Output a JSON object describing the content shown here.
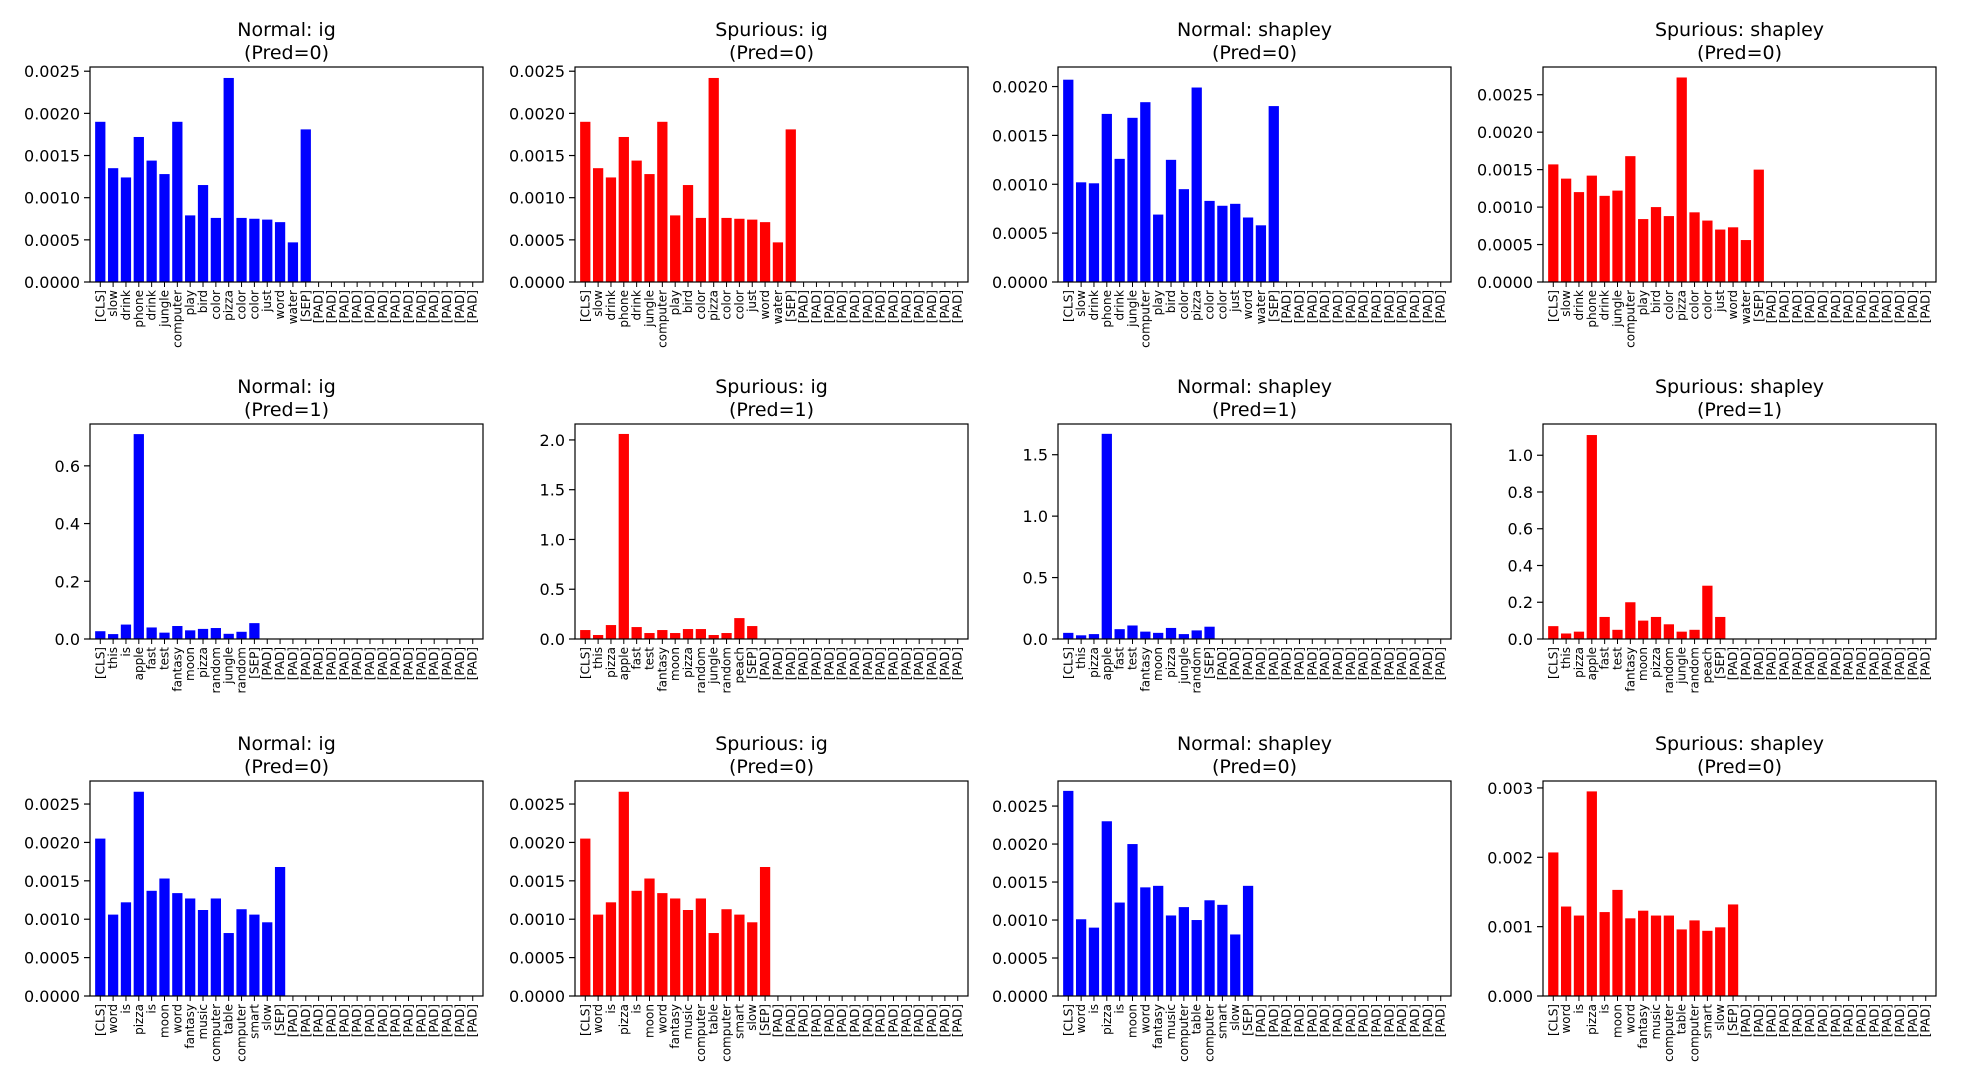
{
  "chart_data": [
    {
      "type": "bar",
      "title": "Normal: ig",
      "subtitle": "(Pred=0)",
      "color": "#0000ff",
      "categories": [
        "[CLS]",
        "slow",
        "drink",
        "phone",
        "drink",
        "jungle",
        "computer",
        "play",
        "bird",
        "color",
        "pizza",
        "color",
        "color",
        "just",
        "word",
        "water",
        "[SEP]",
        "[PAD]",
        "[PAD]",
        "[PAD]",
        "[PAD]",
        "[PAD]",
        "[PAD]",
        "[PAD]",
        "[PAD]",
        "[PAD]",
        "[PAD]",
        "[PAD]",
        "[PAD]",
        "[PAD]"
      ],
      "values": [
        0.0019,
        0.00135,
        0.00124,
        0.00172,
        0.00144,
        0.00128,
        0.0019,
        0.00079,
        0.00115,
        0.00076,
        0.00242,
        0.00076,
        0.00075,
        0.00074,
        0.00071,
        0.00047,
        0.00181,
        0,
        0,
        0,
        0,
        0,
        0,
        0,
        0,
        0,
        0,
        0,
        0,
        0
      ],
      "ylim": [
        0,
        0.00255
      ],
      "yticks": [
        0,
        0.0005,
        0.001,
        0.0015,
        0.002,
        0.0025
      ],
      "ytick_labels": [
        "0.0000",
        "0.0005",
        "0.0010",
        "0.0015",
        "0.0020",
        "0.0025"
      ]
    },
    {
      "type": "bar",
      "title": "Spurious: ig",
      "subtitle": "(Pred=0)",
      "color": "#ff0000",
      "categories": [
        "[CLS]",
        "slow",
        "drink",
        "phone",
        "drink",
        "jungle",
        "computer",
        "play",
        "bird",
        "color",
        "pizza",
        "color",
        "color",
        "just",
        "word",
        "water",
        "[SEP]",
        "[PAD]",
        "[PAD]",
        "[PAD]",
        "[PAD]",
        "[PAD]",
        "[PAD]",
        "[PAD]",
        "[PAD]",
        "[PAD]",
        "[PAD]",
        "[PAD]",
        "[PAD]",
        "[PAD]"
      ],
      "values": [
        0.0019,
        0.00135,
        0.00124,
        0.00172,
        0.00144,
        0.00128,
        0.0019,
        0.00079,
        0.00115,
        0.00076,
        0.00242,
        0.00076,
        0.00075,
        0.00074,
        0.00071,
        0.00047,
        0.00181,
        0,
        0,
        0,
        0,
        0,
        0,
        0,
        0,
        0,
        0,
        0,
        0,
        0
      ],
      "ylim": [
        0,
        0.00255
      ],
      "yticks": [
        0,
        0.0005,
        0.001,
        0.0015,
        0.002,
        0.0025
      ],
      "ytick_labels": [
        "0.0000",
        "0.0005",
        "0.0010",
        "0.0015",
        "0.0020",
        "0.0025"
      ]
    },
    {
      "type": "bar",
      "title": "Normal: shapley",
      "subtitle": "(Pred=0)",
      "color": "#0000ff",
      "categories": [
        "[CLS]",
        "slow",
        "drink",
        "phone",
        "drink",
        "jungle",
        "computer",
        "play",
        "bird",
        "color",
        "pizza",
        "color",
        "color",
        "just",
        "word",
        "water",
        "[SEP]",
        "[PAD]",
        "[PAD]",
        "[PAD]",
        "[PAD]",
        "[PAD]",
        "[PAD]",
        "[PAD]",
        "[PAD]",
        "[PAD]",
        "[PAD]",
        "[PAD]",
        "[PAD]",
        "[PAD]"
      ],
      "values": [
        0.00207,
        0.00102,
        0.00101,
        0.00172,
        0.00126,
        0.00168,
        0.00184,
        0.00069,
        0.00125,
        0.00095,
        0.00199,
        0.00083,
        0.00078,
        0.0008,
        0.00066,
        0.00058,
        0.0018,
        0,
        0,
        0,
        0,
        0,
        0,
        0,
        0,
        0,
        0,
        0,
        0,
        0
      ],
      "ylim": [
        0,
        0.0022
      ],
      "yticks": [
        0,
        0.0005,
        0.001,
        0.0015,
        0.002
      ],
      "ytick_labels": [
        "0.0000",
        "0.0005",
        "0.0010",
        "0.0015",
        "0.0020"
      ]
    },
    {
      "type": "bar",
      "title": "Spurious: shapley",
      "subtitle": "(Pred=0)",
      "color": "#ff0000",
      "categories": [
        "[CLS]",
        "slow",
        "drink",
        "phone",
        "drink",
        "jungle",
        "computer",
        "play",
        "bird",
        "color",
        "pizza",
        "color",
        "color",
        "just",
        "word",
        "water",
        "[SEP]",
        "[PAD]",
        "[PAD]",
        "[PAD]",
        "[PAD]",
        "[PAD]",
        "[PAD]",
        "[PAD]",
        "[PAD]",
        "[PAD]",
        "[PAD]",
        "[PAD]",
        "[PAD]",
        "[PAD]"
      ],
      "values": [
        0.00157,
        0.00138,
        0.0012,
        0.00142,
        0.00115,
        0.00122,
        0.00168,
        0.00084,
        0.001,
        0.00088,
        0.00273,
        0.00093,
        0.00082,
        0.0007,
        0.00073,
        0.00056,
        0.0015,
        0,
        0,
        0,
        0,
        0,
        0,
        0,
        0,
        0,
        0,
        0,
        0,
        0
      ],
      "ylim": [
        0,
        0.00287
      ],
      "yticks": [
        0,
        0.0005,
        0.001,
        0.0015,
        0.002,
        0.0025
      ],
      "ytick_labels": [
        "0.0000",
        "0.0005",
        "0.0010",
        "0.0015",
        "0.0020",
        "0.0025"
      ]
    },
    {
      "type": "bar",
      "title": "Normal: ig",
      "subtitle": "(Pred=1)",
      "color": "#0000ff",
      "categories": [
        "[CLS]",
        "this",
        "is",
        "apple",
        "fast",
        "test",
        "fantasy",
        "moon",
        "pizza",
        "random",
        "jungle",
        "random",
        "[SEP]",
        "[PAD]",
        "[PAD]",
        "[PAD]",
        "[PAD]",
        "[PAD]",
        "[PAD]",
        "[PAD]",
        "[PAD]",
        "[PAD]",
        "[PAD]",
        "[PAD]",
        "[PAD]",
        "[PAD]",
        "[PAD]",
        "[PAD]",
        "[PAD]",
        "[PAD]"
      ],
      "values": [
        0.027,
        0.017,
        0.05,
        0.71,
        0.04,
        0.022,
        0.045,
        0.03,
        0.035,
        0.038,
        0.018,
        0.025,
        0.055,
        0,
        0,
        0,
        0,
        0,
        0,
        0,
        0,
        0,
        0,
        0,
        0,
        0,
        0,
        0,
        0,
        0
      ],
      "ylim": [
        0,
        0.745
      ],
      "yticks": [
        0,
        0.2,
        0.4,
        0.6
      ],
      "ytick_labels": [
        "0.0",
        "0.2",
        "0.4",
        "0.6"
      ]
    },
    {
      "type": "bar",
      "title": "Spurious: ig",
      "subtitle": "(Pred=1)",
      "color": "#ff0000",
      "categories": [
        "[CLS]",
        "this",
        "pizza",
        "apple",
        "fast",
        "test",
        "fantasy",
        "moon",
        "pizza",
        "random",
        "jungle",
        "random",
        "peach",
        "[SEP]",
        "[PAD]",
        "[PAD]",
        "[PAD]",
        "[PAD]",
        "[PAD]",
        "[PAD]",
        "[PAD]",
        "[PAD]",
        "[PAD]",
        "[PAD]",
        "[PAD]",
        "[PAD]",
        "[PAD]",
        "[PAD]",
        "[PAD]",
        "[PAD]"
      ],
      "values": [
        0.09,
        0.04,
        0.14,
        2.06,
        0.12,
        0.06,
        0.09,
        0.06,
        0.1,
        0.1,
        0.04,
        0.06,
        0.21,
        0.13,
        0,
        0,
        0,
        0,
        0,
        0,
        0,
        0,
        0,
        0,
        0,
        0,
        0,
        0,
        0,
        0
      ],
      "ylim": [
        0,
        2.16
      ],
      "yticks": [
        0,
        0.5,
        1,
        1.5,
        2
      ],
      "ytick_labels": [
        "0.0",
        "0.5",
        "1.0",
        "1.5",
        "2.0"
      ]
    },
    {
      "type": "bar",
      "title": "Normal: shapley",
      "subtitle": "(Pred=1)",
      "color": "#0000ff",
      "categories": [
        "[CLS]",
        "this",
        "pizza",
        "apple",
        "fast",
        "test",
        "fantasy",
        "moon",
        "pizza",
        "jungle",
        "random",
        "[SEP]",
        "[PAD]",
        "[PAD]",
        "[PAD]",
        "[PAD]",
        "[PAD]",
        "[PAD]",
        "[PAD]",
        "[PAD]",
        "[PAD]",
        "[PAD]",
        "[PAD]",
        "[PAD]",
        "[PAD]",
        "[PAD]",
        "[PAD]",
        "[PAD]",
        "[PAD]",
        "[PAD]"
      ],
      "values": [
        0.05,
        0.03,
        0.04,
        1.67,
        0.08,
        0.11,
        0.06,
        0.05,
        0.09,
        0.04,
        0.07,
        0.1,
        0,
        0,
        0,
        0,
        0,
        0,
        0,
        0,
        0,
        0,
        0,
        0,
        0,
        0,
        0,
        0,
        0,
        0
      ],
      "ylim": [
        0,
        1.75
      ],
      "yticks": [
        0,
        0.5,
        1,
        1.5
      ],
      "ytick_labels": [
        "0.0",
        "0.5",
        "1.0",
        "1.5"
      ]
    },
    {
      "type": "bar",
      "title": "Spurious: shapley",
      "subtitle": "(Pred=1)",
      "color": "#ff0000",
      "categories": [
        "[CLS]",
        "this",
        "pizza",
        "apple",
        "fast",
        "test",
        "fantasy",
        "moon",
        "pizza",
        "random",
        "jungle",
        "random",
        "peach",
        "[SEP]",
        "[PAD]",
        "[PAD]",
        "[PAD]",
        "[PAD]",
        "[PAD]",
        "[PAD]",
        "[PAD]",
        "[PAD]",
        "[PAD]",
        "[PAD]",
        "[PAD]",
        "[PAD]",
        "[PAD]",
        "[PAD]",
        "[PAD]",
        "[PAD]"
      ],
      "values": [
        0.07,
        0.03,
        0.04,
        1.11,
        0.12,
        0.05,
        0.2,
        0.1,
        0.12,
        0.08,
        0.04,
        0.05,
        0.29,
        0.12,
        0,
        0,
        0,
        0,
        0,
        0,
        0,
        0,
        0,
        0,
        0,
        0,
        0,
        0,
        0,
        0
      ],
      "ylim": [
        0,
        1.17
      ],
      "yticks": [
        0,
        0.2,
        0.4,
        0.6,
        0.8,
        1
      ],
      "ytick_labels": [
        "0.0",
        "0.2",
        "0.4",
        "0.6",
        "0.8",
        "1.0"
      ]
    },
    {
      "type": "bar",
      "title": "Normal: ig",
      "subtitle": "(Pred=0)",
      "color": "#0000ff",
      "categories": [
        "[CLS]",
        "word",
        "is",
        "pizza",
        "is",
        "moon",
        "word",
        "fantasy",
        "music",
        "computer",
        "table",
        "computer",
        "smart",
        "slow",
        "[SEP]",
        "[PAD]",
        "[PAD]",
        "[PAD]",
        "[PAD]",
        "[PAD]",
        "[PAD]",
        "[PAD]",
        "[PAD]",
        "[PAD]",
        "[PAD]",
        "[PAD]",
        "[PAD]",
        "[PAD]",
        "[PAD]",
        "[PAD]"
      ],
      "values": [
        0.00205,
        0.00106,
        0.00122,
        0.00266,
        0.00137,
        0.00153,
        0.00134,
        0.00127,
        0.00112,
        0.00127,
        0.00082,
        0.00113,
        0.00106,
        0.00096,
        0.00168,
        0,
        0,
        0,
        0,
        0,
        0,
        0,
        0,
        0,
        0,
        0,
        0,
        0,
        0,
        0
      ],
      "ylim": [
        0,
        0.0028
      ],
      "yticks": [
        0,
        0.0005,
        0.001,
        0.0015,
        0.002,
        0.0025
      ],
      "ytick_labels": [
        "0.0000",
        "0.0005",
        "0.0010",
        "0.0015",
        "0.0020",
        "0.0025"
      ]
    },
    {
      "type": "bar",
      "title": "Spurious: ig",
      "subtitle": "(Pred=0)",
      "color": "#ff0000",
      "categories": [
        "[CLS]",
        "word",
        "is",
        "pizza",
        "is",
        "moon",
        "word",
        "fantasy",
        "music",
        "computer",
        "table",
        "computer",
        "smart",
        "slow",
        "[SEP]",
        "[PAD]",
        "[PAD]",
        "[PAD]",
        "[PAD]",
        "[PAD]",
        "[PAD]",
        "[PAD]",
        "[PAD]",
        "[PAD]",
        "[PAD]",
        "[PAD]",
        "[PAD]",
        "[PAD]",
        "[PAD]",
        "[PAD]"
      ],
      "values": [
        0.00205,
        0.00106,
        0.00122,
        0.00266,
        0.00137,
        0.00153,
        0.00134,
        0.00127,
        0.00112,
        0.00127,
        0.00082,
        0.00113,
        0.00106,
        0.00096,
        0.00168,
        0,
        0,
        0,
        0,
        0,
        0,
        0,
        0,
        0,
        0,
        0,
        0,
        0,
        0,
        0
      ],
      "ylim": [
        0,
        0.0028
      ],
      "yticks": [
        0,
        0.0005,
        0.001,
        0.0015,
        0.002,
        0.0025
      ],
      "ytick_labels": [
        "0.0000",
        "0.0005",
        "0.0010",
        "0.0015",
        "0.0020",
        "0.0025"
      ]
    },
    {
      "type": "bar",
      "title": "Normal: shapley",
      "subtitle": "(Pred=0)",
      "color": "#0000ff",
      "categories": [
        "[CLS]",
        "word",
        "is",
        "pizza",
        "is",
        "moon",
        "word",
        "fantasy",
        "music",
        "computer",
        "table",
        "computer",
        "smart",
        "slow",
        "[SEP]",
        "[PAD]",
        "[PAD]",
        "[PAD]",
        "[PAD]",
        "[PAD]",
        "[PAD]",
        "[PAD]",
        "[PAD]",
        "[PAD]",
        "[PAD]",
        "[PAD]",
        "[PAD]",
        "[PAD]",
        "[PAD]",
        "[PAD]"
      ],
      "values": [
        0.0027,
        0.00101,
        0.0009,
        0.0023,
        0.00123,
        0.002,
        0.00143,
        0.00145,
        0.00106,
        0.00117,
        0.001,
        0.00126,
        0.0012,
        0.00081,
        0.00145,
        0,
        0,
        0,
        0,
        0,
        0,
        0,
        0,
        0,
        0,
        0,
        0,
        0,
        0,
        0
      ],
      "ylim": [
        0,
        0.00283
      ],
      "yticks": [
        0,
        0.0005,
        0.001,
        0.0015,
        0.002,
        0.0025
      ],
      "ytick_labels": [
        "0.0000",
        "0.0005",
        "0.0010",
        "0.0015",
        "0.0020",
        "0.0025"
      ]
    },
    {
      "type": "bar",
      "title": "Spurious: shapley",
      "subtitle": "(Pred=0)",
      "color": "#ff0000",
      "categories": [
        "[CLS]",
        "word",
        "is",
        "pizza",
        "is",
        "moon",
        "word",
        "fantasy",
        "music",
        "computer",
        "table",
        "computer",
        "smart",
        "slow",
        "[SEP]",
        "[PAD]",
        "[PAD]",
        "[PAD]",
        "[PAD]",
        "[PAD]",
        "[PAD]",
        "[PAD]",
        "[PAD]",
        "[PAD]",
        "[PAD]",
        "[PAD]",
        "[PAD]",
        "[PAD]",
        "[PAD]",
        "[PAD]"
      ],
      "values": [
        0.00207,
        0.00129,
        0.00116,
        0.00295,
        0.00121,
        0.00153,
        0.00112,
        0.00123,
        0.00116,
        0.00116,
        0.00096,
        0.00109,
        0.00094,
        0.00099,
        0.00132,
        0,
        0,
        0,
        0,
        0,
        0,
        0,
        0,
        0,
        0,
        0,
        0,
        0,
        0,
        0
      ],
      "ylim": [
        0,
        0.0031
      ],
      "yticks": [
        0,
        0.001,
        0.002,
        0.003
      ],
      "ytick_labels": [
        "0.000",
        "0.001",
        "0.002",
        "0.003"
      ]
    }
  ]
}
